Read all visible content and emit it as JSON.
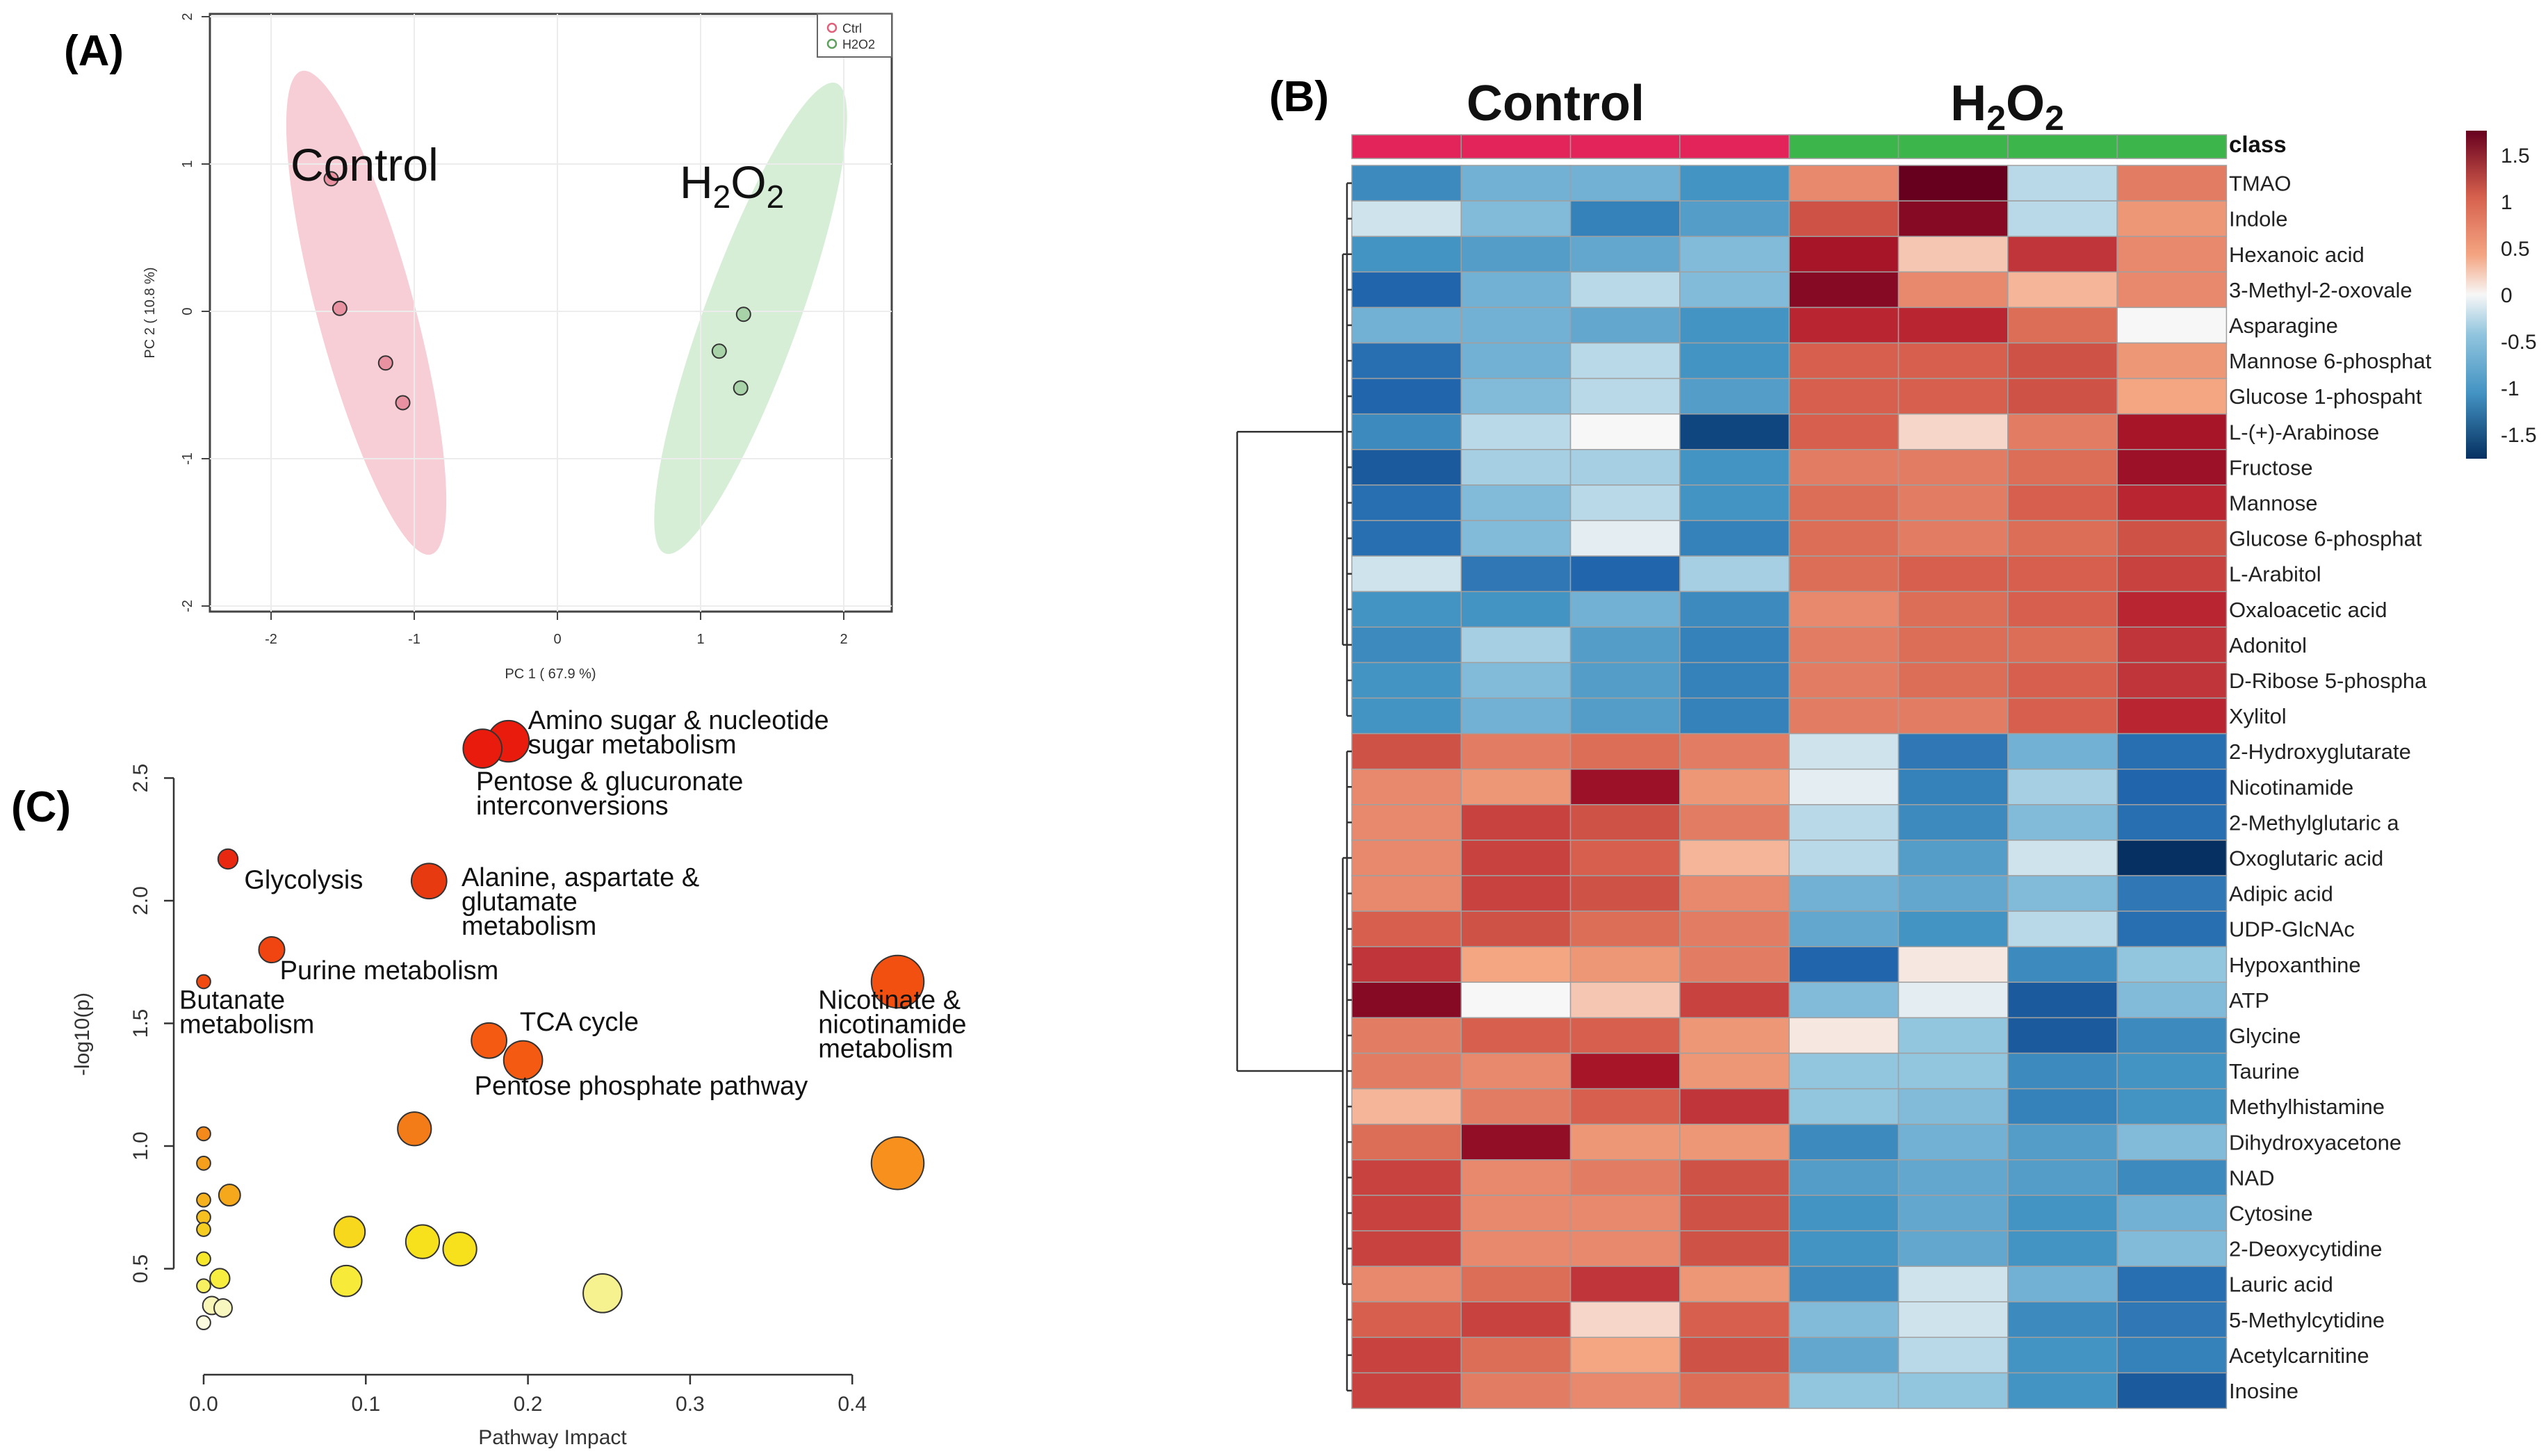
{
  "panel_labels": {
    "a": "(A)",
    "b": "(B)",
    "c": "(C)"
  },
  "chart_data": [
    {
      "id": "A",
      "type": "scatter",
      "title": "",
      "xlabel": "PC 1 ( 67.9 %)",
      "ylabel": "PC 2 ( 10.8 %)",
      "xlim": [
        -2.4,
        2.4
      ],
      "ylim": [
        -2.05,
        2.05
      ],
      "xticks": [
        "-2",
        "-1",
        "0",
        "1",
        "2"
      ],
      "yticks": [
        "-2",
        "-1",
        "0",
        "1",
        "2"
      ],
      "legend_position": "top-right",
      "series": [
        {
          "name": "Ctrl",
          "color": "#e0607a",
          "fill": "#e891a0",
          "ellipse_color": "#f3b8c4",
          "group_label": "Control",
          "points": [
            {
              "x": -1.58,
              "y": 0.9
            },
            {
              "x": -1.52,
              "y": 0.02
            },
            {
              "x": -1.2,
              "y": -0.35
            },
            {
              "x": -1.08,
              "y": -0.62
            }
          ]
        },
        {
          "name": "H2O2",
          "color": "#5fa05f",
          "fill": "#a8d3a8",
          "ellipse_color": "#c5e6c5",
          "group_label": "H2O2",
          "points": [
            {
              "x": 1.3,
              "y": -0.02
            },
            {
              "x": 1.13,
              "y": -0.27
            },
            {
              "x": 1.28,
              "y": -0.52
            }
          ]
        }
      ]
    },
    {
      "id": "B",
      "type": "heatmap",
      "title": "",
      "group_labels": [
        "Control",
        "H2O2"
      ],
      "class_label": "class",
      "class_colors": [
        "#e2245a",
        "#e2245a",
        "#e2245a",
        "#e2245a",
        "#3cb54a",
        "#3cb54a",
        "#3cb54a",
        "#3cb54a"
      ],
      "colorbar_ticks": [
        "1.5",
        "1",
        "0.5",
        "0",
        "-0.5",
        "-1",
        "-1.5"
      ],
      "rows": [
        {
          "name": "TMAO",
          "values": [
            -1.1,
            -0.7,
            -0.7,
            -1.0,
            0.7,
            2.2,
            -0.3,
            0.8
          ]
        },
        {
          "name": "Indole",
          "values": [
            -0.2,
            -0.6,
            -1.2,
            -0.9,
            1.1,
            1.9,
            -0.3,
            0.6
          ]
        },
        {
          "name": "Hexanoic acid",
          "values": [
            -1.0,
            -0.9,
            -0.8,
            -0.6,
            1.6,
            0.3,
            1.3,
            0.7
          ]
        },
        {
          "name": "3-Methyl-2-oxovale",
          "values": [
            -1.5,
            -0.7,
            -0.3,
            -0.6,
            1.9,
            0.7,
            0.4,
            0.7
          ]
        },
        {
          "name": "Asparagine",
          "values": [
            -0.7,
            -0.7,
            -0.8,
            -1.0,
            1.4,
            1.4,
            0.9,
            0.0
          ]
        },
        {
          "name": "Mannose 6-phosphat",
          "values": [
            -1.4,
            -0.7,
            -0.3,
            -1.0,
            1.0,
            1.0,
            1.1,
            0.6
          ]
        },
        {
          "name": "Glucose 1-phospaht",
          "values": [
            -1.5,
            -0.6,
            -0.3,
            -0.9,
            1.0,
            1.0,
            1.1,
            0.5
          ]
        },
        {
          "name": "L-(+)-Arabinose",
          "values": [
            -1.1,
            -0.3,
            0.0,
            -1.8,
            1.0,
            0.2,
            0.8,
            1.6
          ]
        },
        {
          "name": "Fructose",
          "values": [
            -1.6,
            -0.4,
            -0.4,
            -1.0,
            0.8,
            0.8,
            0.9,
            1.7
          ]
        },
        {
          "name": "Mannose",
          "values": [
            -1.4,
            -0.6,
            -0.3,
            -1.0,
            0.9,
            0.8,
            1.0,
            1.4
          ]
        },
        {
          "name": "Glucose 6-phosphat",
          "values": [
            -1.4,
            -0.6,
            -0.1,
            -1.2,
            0.9,
            0.8,
            0.9,
            1.1
          ]
        },
        {
          "name": "L-Arabitol",
          "values": [
            -0.2,
            -1.3,
            -1.5,
            -0.4,
            0.9,
            1.0,
            1.0,
            1.2
          ]
        },
        {
          "name": "Oxaloacetic acid",
          "values": [
            -1.0,
            -1.0,
            -0.7,
            -1.1,
            0.7,
            0.9,
            1.0,
            1.4
          ]
        },
        {
          "name": "Adonitol",
          "values": [
            -1.1,
            -0.4,
            -0.9,
            -1.2,
            0.8,
            0.9,
            0.9,
            1.3
          ]
        },
        {
          "name": "D-Ribose 5-phospha",
          "values": [
            -1.0,
            -0.6,
            -0.9,
            -1.2,
            0.8,
            0.9,
            1.0,
            1.3
          ]
        },
        {
          "name": "Xylitol",
          "values": [
            -1.0,
            -0.7,
            -0.9,
            -1.2,
            0.8,
            0.8,
            1.0,
            1.4
          ]
        },
        {
          "name": "2-Hydroxyglutarate",
          "values": [
            1.1,
            0.8,
            0.9,
            0.8,
            -0.2,
            -1.3,
            -0.7,
            -1.4
          ]
        },
        {
          "name": "Nicotinamide",
          "values": [
            0.7,
            0.6,
            1.7,
            0.6,
            -0.1,
            -1.2,
            -0.4,
            -1.5
          ]
        },
        {
          "name": "2-Methylglutaric a",
          "values": [
            0.7,
            1.2,
            1.1,
            0.8,
            -0.3,
            -1.1,
            -0.6,
            -1.4
          ]
        },
        {
          "name": "Oxoglutaric acid",
          "values": [
            0.7,
            1.2,
            1.0,
            0.4,
            -0.3,
            -0.9,
            -0.2,
            -2.0
          ]
        },
        {
          "name": "Adipic acid",
          "values": [
            0.7,
            1.2,
            1.1,
            0.7,
            -0.7,
            -0.8,
            -0.6,
            -1.3
          ]
        },
        {
          "name": "UDP-GlcNAc",
          "values": [
            1.0,
            1.1,
            0.9,
            0.8,
            -0.8,
            -1.0,
            -0.3,
            -1.4
          ]
        },
        {
          "name": "Hypoxanthine",
          "values": [
            1.3,
            0.5,
            0.6,
            0.8,
            -1.5,
            0.1,
            -1.1,
            -0.5
          ]
        },
        {
          "name": "ATP",
          "values": [
            1.9,
            0.0,
            0.3,
            1.2,
            -0.6,
            -0.1,
            -1.6,
            -0.6
          ]
        },
        {
          "name": "Glycine",
          "values": [
            0.8,
            1.0,
            1.0,
            0.6,
            0.1,
            -0.5,
            -1.6,
            -1.1
          ]
        },
        {
          "name": "Taurine",
          "values": [
            0.8,
            0.7,
            1.6,
            0.6,
            -0.5,
            -0.5,
            -1.1,
            -1.0
          ]
        },
        {
          "name": "Methylhistamine",
          "values": [
            0.4,
            0.8,
            1.0,
            1.3,
            -0.5,
            -0.6,
            -1.2,
            -1.0
          ]
        },
        {
          "name": "Dihydroxyacetone",
          "values": [
            0.9,
            1.8,
            0.6,
            0.6,
            -1.1,
            -0.7,
            -0.9,
            -0.6
          ]
        },
        {
          "name": "NAD",
          "values": [
            1.2,
            0.7,
            0.8,
            1.1,
            -0.9,
            -0.8,
            -0.9,
            -1.1
          ]
        },
        {
          "name": "Cytosine",
          "values": [
            1.2,
            0.7,
            0.7,
            1.1,
            -1.0,
            -0.8,
            -1.0,
            -0.7
          ]
        },
        {
          "name": "2-Deoxycytidine",
          "values": [
            1.2,
            0.7,
            0.7,
            1.1,
            -1.0,
            -0.8,
            -1.0,
            -0.6
          ]
        },
        {
          "name": "Lauric acid",
          "values": [
            0.7,
            0.9,
            1.3,
            0.6,
            -1.1,
            -0.2,
            -0.7,
            -1.4
          ]
        },
        {
          "name": "5-Methylcytidine",
          "values": [
            1.0,
            1.2,
            0.2,
            1.0,
            -0.6,
            -0.2,
            -1.1,
            -1.3
          ]
        },
        {
          "name": "Acetylcarnitine",
          "values": [
            1.2,
            0.9,
            0.5,
            1.1,
            -0.8,
            -0.3,
            -1.0,
            -1.2
          ]
        },
        {
          "name": "Inosine",
          "values": [
            1.2,
            0.8,
            0.7,
            0.9,
            -0.5,
            -0.5,
            -1.0,
            -1.6
          ]
        }
      ]
    },
    {
      "id": "C",
      "type": "scatter",
      "title": "",
      "xlabel": "Pathway Impact",
      "ylabel": "-log10(p)",
      "xlim": [
        0,
        0.43
      ],
      "ylim": [
        0.25,
        2.55
      ],
      "xticks": [
        "0.0",
        "0.1",
        "0.2",
        "0.3",
        "0.4"
      ],
      "yticks": [
        "0.5",
        "1.0",
        "1.5",
        "2.0",
        "2.5"
      ],
      "points": [
        {
          "x": 0.172,
          "y": 2.62,
          "size": 0.42,
          "color": "#e81b0c"
        },
        {
          "x": 0.188,
          "y": 2.65,
          "size": 0.45,
          "color": "#e81b0c"
        },
        {
          "x": 0.015,
          "y": 2.17,
          "size": 0.2,
          "color": "#e82810"
        },
        {
          "x": 0.139,
          "y": 2.08,
          "size": 0.38,
          "color": "#e83a10"
        },
        {
          "x": 0.042,
          "y": 1.8,
          "size": 0.27,
          "color": "#f04510"
        },
        {
          "x": 0.0,
          "y": 1.67,
          "size": 0.13,
          "color": "#f04a10"
        },
        {
          "x": 0.428,
          "y": 1.67,
          "size": 0.58,
          "color": "#f25010"
        },
        {
          "x": 0.176,
          "y": 1.43,
          "size": 0.38,
          "color": "#f45a12"
        },
        {
          "x": 0.197,
          "y": 1.35,
          "size": 0.42,
          "color": "#f45a12"
        },
        {
          "x": 0.13,
          "y": 1.07,
          "size": 0.36,
          "color": "#f47c18"
        },
        {
          "x": 0.428,
          "y": 0.93,
          "size": 0.58,
          "color": "#f7901c"
        },
        {
          "x": 0.0,
          "y": 1.05,
          "size": 0.13,
          "color": "#f48a1c"
        },
        {
          "x": 0.0,
          "y": 0.93,
          "size": 0.13,
          "color": "#f5a01c"
        },
        {
          "x": 0.016,
          "y": 0.8,
          "size": 0.22,
          "color": "#f5a81c"
        },
        {
          "x": 0.0,
          "y": 0.78,
          "size": 0.13,
          "color": "#f5b21e"
        },
        {
          "x": 0.0,
          "y": 0.71,
          "size": 0.13,
          "color": "#f5c020"
        },
        {
          "x": 0.0,
          "y": 0.66,
          "size": 0.13,
          "color": "#f5cc20"
        },
        {
          "x": 0.09,
          "y": 0.65,
          "size": 0.33,
          "color": "#f7d81c"
        },
        {
          "x": 0.135,
          "y": 0.61,
          "size": 0.36,
          "color": "#f7e01c"
        },
        {
          "x": 0.158,
          "y": 0.58,
          "size": 0.36,
          "color": "#f7e01c"
        },
        {
          "x": 0.0,
          "y": 0.54,
          "size": 0.13,
          "color": "#f7e82c"
        },
        {
          "x": 0.01,
          "y": 0.46,
          "size": 0.2,
          "color": "#f7ee40"
        },
        {
          "x": 0.0,
          "y": 0.43,
          "size": 0.13,
          "color": "#f7f060"
        },
        {
          "x": 0.088,
          "y": 0.45,
          "size": 0.33,
          "color": "#f7ea38"
        },
        {
          "x": 0.246,
          "y": 0.4,
          "size": 0.42,
          "color": "#f7f290"
        },
        {
          "x": 0.005,
          "y": 0.35,
          "size": 0.18,
          "color": "#f9f7b8"
        },
        {
          "x": 0.012,
          "y": 0.34,
          "size": 0.18,
          "color": "#f9f7c0"
        },
        {
          "x": 0.0,
          "y": 0.28,
          "size": 0.13,
          "color": "#fbfbe0"
        }
      ],
      "annotations": [
        {
          "lines": [
            "Amino sugar & nucleotide",
            "sugar metabolism"
          ],
          "x": 0.2,
          "y": 2.7
        },
        {
          "lines": [
            "Pentose & glucuronate",
            "interconversions"
          ],
          "x": 0.168,
          "y": 2.45
        },
        {
          "lines": [
            "Glycolysis"
          ],
          "x": 0.025,
          "y": 2.05
        },
        {
          "lines": [
            "Alanine, aspartate &",
            "glutamate",
            "metabolism"
          ],
          "x": 0.159,
          "y": 2.06
        },
        {
          "lines": [
            "Purine  metabolism"
          ],
          "x": 0.047,
          "y": 1.68
        },
        {
          "lines": [
            "Butanate",
            "metabolism"
          ],
          "x": -0.015,
          "y": 1.56
        },
        {
          "lines": [
            "TCA cycle"
          ],
          "x": 0.195,
          "y": 1.47
        },
        {
          "lines": [
            "Nicotinate &",
            "nicotinamide",
            "metabolism"
          ],
          "x": 0.379,
          "y": 1.56
        },
        {
          "lines": [
            "Pentose phosphate pathway"
          ],
          "x": 0.167,
          "y": 1.21
        }
      ]
    }
  ]
}
